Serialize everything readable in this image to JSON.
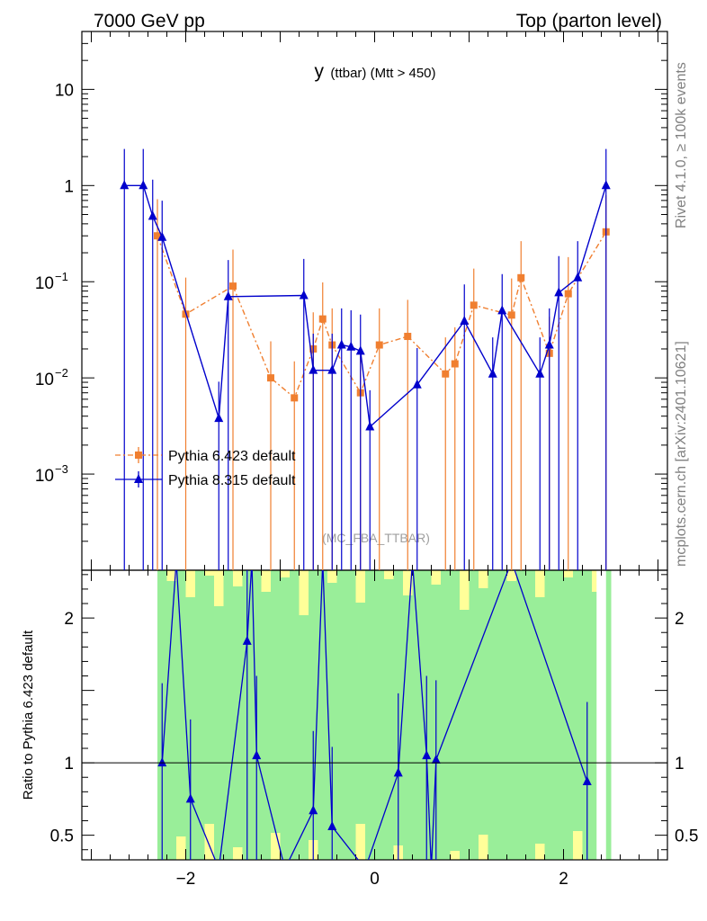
{
  "header": {
    "left": "7000 GeV pp",
    "right": "Top (parton level)"
  },
  "side_labels": {
    "rivet": "Rivet 4.1.0, ≥ 100k events",
    "mcplots": "mcplots.cern.ch [arXiv:2401.10621]"
  },
  "chart_data": {
    "type": "line",
    "title_main": "y",
    "title_sub": "(ttbar) (Mtt > 450)",
    "watermark": "(MC_FBA_TTBAR)",
    "xlim": [
      -3.1,
      3.1
    ],
    "ylim_main": [
      0.0001,
      40
    ],
    "y_scale_main": "log",
    "x_ticks": [
      -2,
      0,
      2
    ],
    "x_tick_labels": [
      "−2",
      "0",
      "2"
    ],
    "y_ticks_main": [
      10,
      1
    ],
    "y_tick_labels_main": [
      "10",
      "1"
    ],
    "y_ticks_main_exp": [
      0.1,
      0.01,
      0.001
    ],
    "y_tick_labels_main_exp": [
      {
        "base": "10",
        "exp": "−1"
      },
      {
        "base": "10",
        "exp": "−2"
      },
      {
        "base": "10",
        "exp": "−3"
      }
    ],
    "ratio": {
      "ylabel": "Ratio to Pythia 6.423 default",
      "ylim": [
        0.33,
        2.33
      ],
      "y_ticks": [
        0.5,
        1,
        2
      ],
      "y_tick_labels": [
        "0.5",
        "1",
        "2"
      ]
    },
    "legend": {
      "placement": "middle-left",
      "entries": [
        "Pythia 6.423 default",
        "Pythia 8.315 default"
      ]
    },
    "series": [
      {
        "name": "Pythia 6.423 default",
        "color": "#f07f30",
        "marker": "square",
        "points": [
          {
            "x": -2.3,
            "y": 0.3
          },
          {
            "x": -2.0,
            "y": 0.046
          },
          {
            "x": -1.5,
            "y": 0.09
          },
          {
            "x": -1.1,
            "y": 0.01
          },
          {
            "x": -0.85,
            "y": 0.0062
          },
          {
            "x": -0.65,
            "y": 0.02
          },
          {
            "x": -0.55,
            "y": 0.041
          },
          {
            "x": -0.45,
            "y": 0.022
          },
          {
            "x": -0.15,
            "y": 0.007
          },
          {
            "x": 0.05,
            "y": 0.022
          },
          {
            "x": 0.35,
            "y": 0.027
          },
          {
            "x": 0.75,
            "y": 0.011
          },
          {
            "x": 0.85,
            "y": 0.014
          },
          {
            "x": 1.05,
            "y": 0.057
          },
          {
            "x": 1.45,
            "y": 0.045
          },
          {
            "x": 1.55,
            "y": 0.11
          },
          {
            "x": 1.85,
            "y": 0.018
          },
          {
            "x": 2.05,
            "y": 0.075
          },
          {
            "x": 2.45,
            "y": 0.33
          }
        ]
      },
      {
        "name": "Pythia 8.315 default",
        "color": "#0000cc",
        "marker": "triangle",
        "points": [
          {
            "x": -2.65,
            "y": 1.0
          },
          {
            "x": -2.45,
            "y": 1.0
          },
          {
            "x": -2.35,
            "y": 0.48
          },
          {
            "x": -2.25,
            "y": 0.29
          },
          {
            "x": -1.65,
            "y": 0.0038
          },
          {
            "x": -1.55,
            "y": 0.07
          },
          {
            "x": -0.75,
            "y": 0.072
          },
          {
            "x": -0.65,
            "y": 0.012
          },
          {
            "x": -0.45,
            "y": 0.012
          },
          {
            "x": -0.35,
            "y": 0.022
          },
          {
            "x": -0.25,
            "y": 0.021
          },
          {
            "x": -0.15,
            "y": 0.019
          },
          {
            "x": -0.05,
            "y": 0.0031
          },
          {
            "x": 0.45,
            "y": 0.0085
          },
          {
            "x": 0.95,
            "y": 0.039
          },
          {
            "x": 1.25,
            "y": 0.011
          },
          {
            "x": 1.35,
            "y": 0.05
          },
          {
            "x": 1.75,
            "y": 0.011
          },
          {
            "x": 1.85,
            "y": 0.022
          },
          {
            "x": 1.95,
            "y": 0.077
          },
          {
            "x": 2.15,
            "y": 0.11
          },
          {
            "x": 2.45,
            "y": 1.0
          }
        ],
        "ratio_points": [
          {
            "x": -2.25,
            "y": 1.0
          },
          {
            "x": -1.95,
            "y": 0.75
          },
          {
            "x": -1.35,
            "y": 1.84
          },
          {
            "x": -1.25,
            "y": 1.05
          },
          {
            "x": -0.65,
            "y": 0.67
          },
          {
            "x": -0.45,
            "y": 0.56
          },
          {
            "x": 0.25,
            "y": 0.93
          },
          {
            "x": 0.55,
            "y": 1.05
          },
          {
            "x": 0.65,
            "y": 1.02
          },
          {
            "x": 2.25,
            "y": 0.87
          }
        ]
      }
    ]
  }
}
